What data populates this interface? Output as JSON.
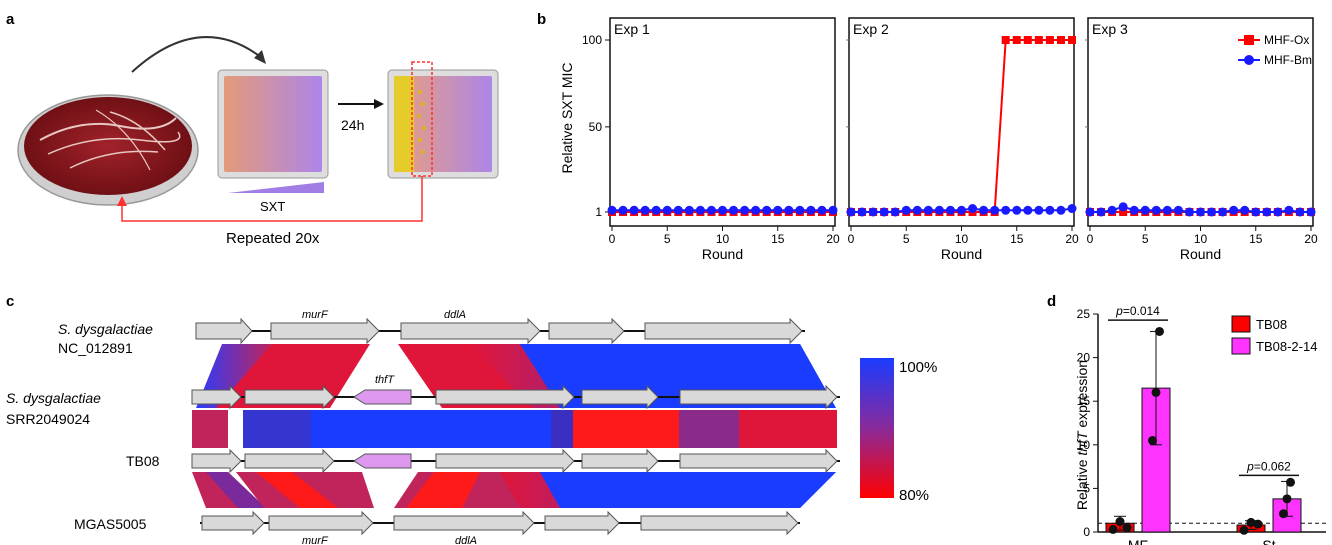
{
  "panels": {
    "a": "a",
    "b": "b",
    "c": "c",
    "d": "d"
  },
  "panel_a": {
    "gradient_label": "SXT",
    "time_label": "24h",
    "repeat_label": "Repeated 20x"
  },
  "chart_data": [
    {
      "type": "line",
      "panel": "b",
      "subplots": [
        "Exp 1",
        "Exp 2",
        "Exp 3"
      ],
      "ylabel": "Relative SXT MIC",
      "xlabel": "Round",
      "xticks": [
        "0",
        "5",
        "10",
        "15",
        "20"
      ],
      "yticks": [
        "1",
        "50",
        "100"
      ],
      "ylim": [
        1,
        100
      ],
      "xlim": [
        0,
        20
      ],
      "legend_placement": "top-right",
      "series_names": [
        "MHF-Ox",
        "MHF-Bm"
      ],
      "series_colors": [
        "#ff0000",
        "#1a1aff"
      ],
      "x": [
        0,
        1,
        2,
        3,
        4,
        5,
        6,
        7,
        8,
        9,
        10,
        11,
        12,
        13,
        14,
        15,
        16,
        17,
        18,
        19,
        20
      ],
      "exp1": {
        "MHF-Ox": [
          1,
          1,
          1,
          1,
          1,
          1,
          1,
          1,
          1,
          1,
          1,
          1,
          1,
          1,
          1,
          1,
          1,
          1,
          1,
          1,
          1
        ],
        "MHF-Bm": [
          2,
          2,
          2,
          2,
          2,
          2,
          2,
          2,
          2,
          2,
          2,
          2,
          2,
          2,
          2,
          2,
          2,
          2,
          2,
          2,
          2
        ]
      },
      "exp2": {
        "MHF-Ox": [
          1,
          1,
          1,
          1,
          1,
          1,
          1,
          1,
          1,
          1,
          1,
          1,
          1,
          1,
          100,
          100,
          100,
          100,
          100,
          100,
          100
        ],
        "MHF-Bm": [
          1,
          1,
          1,
          1,
          1,
          2,
          2,
          2,
          2,
          2,
          2,
          3,
          2,
          2,
          2,
          2,
          2,
          2,
          2,
          2,
          3
        ]
      },
      "exp3": {
        "MHF-Ox": [
          1,
          1,
          1,
          1,
          1,
          1,
          1,
          1,
          1,
          1,
          1,
          1,
          1,
          1,
          1,
          1,
          1,
          1,
          1,
          1,
          1
        ],
        "MHF-Bm": [
          1,
          1,
          2,
          4,
          2,
          2,
          2,
          2,
          2,
          1,
          1,
          1,
          1,
          2,
          2,
          1,
          1,
          1,
          2,
          1,
          1
        ]
      }
    },
    {
      "type": "bar",
      "panel": "d",
      "ylabel_pre": "Relative ",
      "ylabel_ital": "thfT",
      "ylabel_post": " expression",
      "categories": [
        "MF",
        "St"
      ],
      "series_names": [
        "TB08",
        "TB08-2-14"
      ],
      "series_colors": [
        "#ff0000",
        "#ff33ff"
      ],
      "values": [
        [
          1.0,
          16.5
        ],
        [
          0.8,
          3.8
        ]
      ],
      "errors": [
        [
          0.8,
          6.5
        ],
        [
          0.5,
          2.0
        ]
      ],
      "points": [
        [
          [
            0.3,
            1.2,
            0.5
          ],
          [
            10.5,
            16.0,
            23.0
          ]
        ],
        [
          [
            0.2,
            1.1,
            0.9
          ],
          [
            2.1,
            3.8,
            5.7
          ]
        ]
      ],
      "yticks": [
        "0",
        "5",
        "10",
        "15",
        "20",
        "25"
      ],
      "ylim": [
        0,
        25
      ],
      "baseline": 1,
      "pvalue_p": "p",
      "pvalues": [
        "=0.014",
        "=0.062"
      ],
      "legend_placement": "top-right"
    }
  ],
  "panel_c": {
    "tracks": [
      {
        "species": "S. dysgalactiae",
        "strain": "NC_012891"
      },
      {
        "species": "S. dysgalactiae",
        "strain": "SRR2049024"
      },
      {
        "species": "",
        "strain": "TB08"
      },
      {
        "species": "",
        "strain": "MGAS5005"
      }
    ],
    "genes_top": [
      "murF",
      "ddlA"
    ],
    "gene_mid": "thfT",
    "genes_bottom": [
      "murF",
      "ddlA"
    ],
    "identity_scale": [
      "100%",
      "80%"
    ],
    "identity_colors": [
      "#1a3cff",
      "#ff0000"
    ]
  }
}
